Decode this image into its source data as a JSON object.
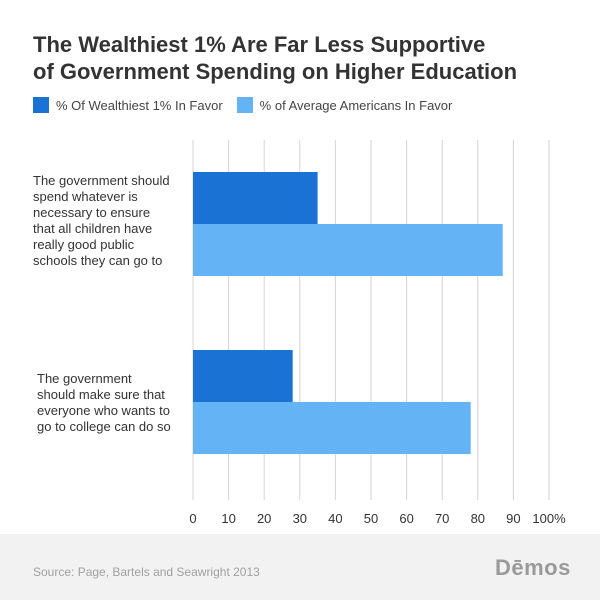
{
  "title_line1": "The Wealthiest 1% Are Far Less Supportive",
  "title_line2": "of Government Spending on Higher Education",
  "source": "Source: Page, Bartels and Seawright 2013",
  "logo": "Dēmos",
  "colors": {
    "series1": "#1a73d4",
    "series2": "#63b3f5",
    "grid": "#d4d4d4",
    "axis_text": "#333333"
  },
  "chart_data": {
    "type": "bar",
    "orientation": "horizontal",
    "categories": [
      [
        "The government should",
        "spend whatever is",
        "necessary to ensure",
        "that all children have",
        "really good public",
        "schools they can go to"
      ],
      [
        "The government",
        "should make sure that",
        "everyone who wants to",
        "go to college can do so"
      ]
    ],
    "series": [
      {
        "name": "% Of Wealthiest 1% In Favor",
        "values": [
          35,
          28
        ]
      },
      {
        "name": "% of Average Americans In Favor",
        "values": [
          87,
          78
        ]
      }
    ],
    "x_ticks": [
      "0",
      "10",
      "20",
      "30",
      "40",
      "50",
      "60",
      "70",
      "80",
      "90",
      "100%"
    ],
    "xlim": [
      0,
      100
    ],
    "grid": true,
    "legend_position": "top"
  }
}
